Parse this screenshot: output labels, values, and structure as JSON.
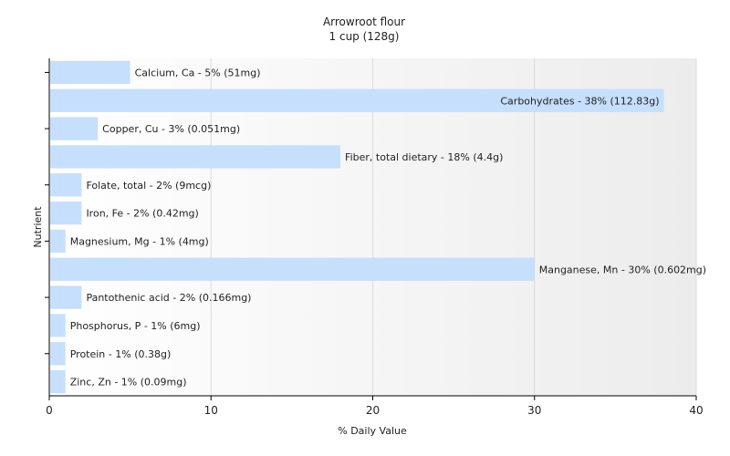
{
  "chart_data": {
    "type": "bar",
    "orientation": "horizontal",
    "title": "Arrowroot flour",
    "subtitle": "1 cup (128g)",
    "xlabel": "% Daily Value",
    "ylabel": "Nutrient",
    "xlim": [
      0,
      40
    ],
    "xticks": [
      0,
      10,
      20,
      30,
      40
    ],
    "grid": true,
    "bar_color": "#c6dffc",
    "categories": [
      "Calcium, Ca",
      "Carbohydrates",
      "Copper, Cu",
      "Fiber, total dietary",
      "Folate, total",
      "Iron, Fe",
      "Magnesium, Mg",
      "Manganese, Mn",
      "Pantothenic acid",
      "Phosphorus, P",
      "Protein",
      "Zinc, Zn"
    ],
    "values": [
      5,
      38,
      3,
      18,
      2,
      2,
      1,
      30,
      2,
      1,
      1,
      1
    ],
    "data_labels": [
      "Calcium, Ca - 5% (51mg)",
      "Carbohydrates - 38% (112.83g)",
      "Copper, Cu - 3% (0.051mg)",
      "Fiber, total dietary - 18% (4.4g)",
      "Folate, total - 2% (9mcg)",
      "Iron, Fe - 2% (0.42mg)",
      "Magnesium, Mg - 1% (4mg)",
      "Manganese, Mn - 30% (0.602mg)",
      "Pantothenic acid - 2% (0.166mg)",
      "Phosphorus, P - 1% (6mg)",
      "Protein - 1% (0.38g)",
      "Zinc, Zn - 1% (0.09mg)"
    ]
  }
}
